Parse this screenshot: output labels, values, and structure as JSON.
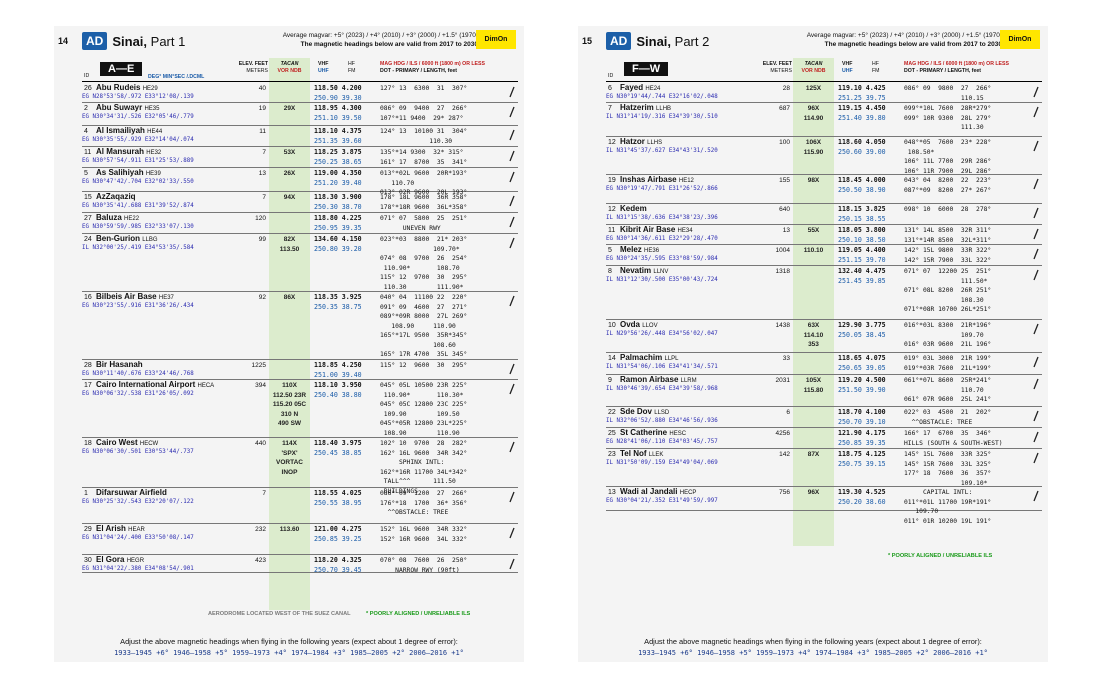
{
  "p1": {
    "page": "14",
    "badge": "AD",
    "title": "Sinai,",
    "part": "Part 1",
    "magvar_line1": "Average magvar: +5° (2023) / +4° (2010) / +3° (2000) / +1.5° (1970)",
    "magvar_line2": "The magnetic headings below are valid from 2017 to 2030",
    "dimon": "DimOn",
    "letters": "A—E",
    "rows": [
      {
        "idx": "26",
        "name": "Abu Rudeis",
        "icao": "HE29",
        "coord": "EG N28°53'58/.972 E33°12'08/.139",
        "elev": "40",
        "tac": "",
        "vhf": "118.50 4.200",
        "uhf": "250.90 39.30",
        "mag": "127° 13  6300  31  307°"
      },
      {
        "idx": "2",
        "name": "Abu Suwayr",
        "icao": "HE35",
        "coord": "EG N30°34'31/.526 E32°05'46/.779",
        "elev": "19",
        "tac": "29X",
        "vhf": "118.95 4.300",
        "uhf": "251.10 39.50",
        "mag": "086° 09  9400  27  266°\n107°*11 9400  29* 287°"
      },
      {
        "idx": "4",
        "name": "Al Ismailiyah",
        "icao": "HE44",
        "coord": "EG N30°35'55/.929 E32°14'04/.074",
        "elev": "11",
        "tac": "",
        "vhf": "118.10 4.375",
        "uhf": "251.35 39.60",
        "mag": "124° 13  10100 31  304°\n             110.30"
      },
      {
        "idx": "11",
        "name": "Al Mansurah",
        "icao": "HE32",
        "coord": "EG N30°57'54/.911 E31°25'53/.889",
        "elev": "7",
        "tac": "53X",
        "vhf": "118.25 3.875",
        "uhf": "250.25 38.65",
        "mag": "135°*14 9300  32* 315°\n161° 17  8700  35  341°"
      },
      {
        "idx": "5",
        "name": "As Salihiyah",
        "icao": "HE39",
        "coord": "EG N30°47'42/.704 E32°02'33/.550",
        "elev": "13",
        "tac": "26X",
        "vhf": "119.00 4.350",
        "uhf": "251.20 39.40",
        "mag": "013°*02L 9600  20R*193°\n   110.70\n013° 02R 9600  20L 193°"
      },
      {
        "idx": "15",
        "name": "AzZaqaziq",
        "icao": "",
        "coord": "EG N30°35'41/.688 E31°39'52/.874",
        "elev": "7",
        "tac": "94X",
        "vhf": "118.30 3.900",
        "uhf": "250.30 38.70",
        "mag": "178° 18L 9600  36R 358°\n178°*18R 9600  36L*358°"
      },
      {
        "idx": "27",
        "name": "Baluza",
        "icao": "HE22",
        "coord": "EG N30°59'59/.985 E32°33'07/.130",
        "elev": "120",
        "tac": "",
        "vhf": "118.80 4.225",
        "uhf": "250.95 39.35",
        "mag": "071° 07  5800  25  251°\n      UNEVEN RWY"
      },
      {
        "idx": "24",
        "name": "Ben-Gurion",
        "icao": "LLBG",
        "coord": "IL N32°00'25/.419 E34°53'35/.584",
        "elev": "99",
        "tac": "82X\n113.50",
        "vhf": "134.60 4.150",
        "uhf": "250.80 39.20",
        "mag": "023°*03  8800  21* 203°\n              109.70*\n074° 08  9700  26  254°\n 110.90*       108.70\n115° 12  9700  30  295°\n 110.30        111.90*"
      },
      {
        "idx": "16",
        "name": "Bilbeis Air Base",
        "icao": "HE37",
        "coord": "EG N30°23'55/.916 E31°36'26/.434",
        "elev": "92",
        "tac": "86X",
        "vhf": "118.35 3.925",
        "uhf": "250.35 38.75",
        "mag": "040° 04  11100 22  220°\n091° 09  4600  27  271°\n089°*09R 8000  27L 269°\n   108.90     110.90\n165°*17L 9500  35R*345°\n              108.60\n165° 17R 4700  35L 345°"
      },
      {
        "idx": "28",
        "name": "Bir Hasanah",
        "icao": "",
        "coord": "EG N30°11'40/.676 E33°24'46/.768",
        "elev": "1225",
        "tac": "",
        "vhf": "118.85 4.250",
        "uhf": "251.00 39.40",
        "mag": "115° 12  9600  30  295°"
      },
      {
        "idx": "17",
        "name": "Cairo International Airport",
        "icao": "HECA",
        "coord": "EG N30°06'32/.538 E31°26'05/.092",
        "elev": "394",
        "tac": "110X\n112.50 23R\n115.20 05C\n310 N\n490 SW",
        "vhf": "118.10 3.950",
        "uhf": "250.40 38.80",
        "mag": "045° 05L 10500 23R 225°\n 110.90*       110.30*\n045° 05C 12800 23C 225°\n 109.90        109.50\n045°*05R 12800 23L*225°\n 108.90        110.90"
      },
      {
        "idx": "18",
        "name": "Cairo West",
        "icao": "HECW",
        "coord": "EG N30°06'30/.501 E30°53'44/.737",
        "elev": "440",
        "tac": "114X\n'SPX'\nVORTAC\nINOP",
        "vhf": "118.40 3.975",
        "uhf": "250.45 38.85",
        "mag": "102° 10  9700  28  282°\n162° 16L 9600  34R 342°\n     SPHINX INTL:\n162°*16R 11700 34L*342°\n TALL^^^      111.50\n BUILDINGS"
      },
      {
        "idx": "1",
        "name": "Difarsuwar Airfield",
        "icao": "",
        "coord": "EG N30°25'32/.543 E32°20'07/.122",
        "elev": "7",
        "tac": "",
        "vhf": "118.55 4.025",
        "uhf": "250.55 38.95",
        "mag": "086° 09  1200  27  266°\n176°*18  1700  36* 356°\n  ^^OBSTACLE: TREE"
      },
      {
        "idx": "29",
        "name": "El Arish",
        "icao": "HEAR",
        "coord": "EG N31°04'24/.400 E33°50'08/.147",
        "elev": "232",
        "tac": "113.60",
        "vhf": "121.00 4.275",
        "uhf": "250.85 39.25",
        "mag": "152° 16L 9600  34R 332°\n152° 16R 9600  34L 332°"
      },
      {
        "idx": "30",
        "name": "El Gora",
        "icao": "HEGR",
        "coord": "EG N31°04'22/.380 E34°08'54/.901",
        "elev": "423",
        "tac": "",
        "vhf": "118.20 4.325",
        "uhf": "250.70 39.45",
        "mag": "070° 08  7600  26  250°\n    NARROW RWY (90ft)"
      }
    ],
    "note_suez": "AERODROME LOCATED WEST OF THE SUEZ CANAL",
    "note_poor": "* POORLY ALIGNED / UNRELIABLE ILS",
    "foot": "Adjust the above magnetic headings when flying in the following years (expect about 1 degree of error):",
    "years": "1933–1945 +6°   1946–1958 +5°   1959–1973 +4°   1974–1984 +3°   1985–2005 +2°   2006–2016 +1°"
  },
  "p2": {
    "page": "15",
    "badge": "AD",
    "title": "Sinai,",
    "part": "Part 2",
    "magvar_line1": "Average magvar: +5° (2023) / +4° (2010) / +3° (2000) / +1.5° (1970)",
    "magvar_line2": "The magnetic headings below are valid from 2017 to 2030",
    "dimon": "DimOn",
    "letters": "F—W",
    "rows": [
      {
        "idx": "6",
        "name": "Fayed",
        "icao": "HE24",
        "coord": "EG N30°19'44/.744 E32°16'02/.048",
        "elev": "28",
        "tac": "125X",
        "vhf": "119.10 4.425",
        "uhf": "251.25 39.75",
        "mag": "086° 09  9800  27  266°\n               110.15"
      },
      {
        "idx": "7",
        "name": "Hatzerim",
        "icao": "LLHB",
        "coord": "IL N31°14'19/.316 E34°39'30/.510",
        "elev": "687",
        "tac": "96X\n114.90",
        "vhf": "119.15 4.450",
        "uhf": "251.40 39.80",
        "mag": "099°*10L 7600  28R*279°\n099° 10R 9300  28L 279°\n               111.30"
      },
      {
        "idx": "12",
        "name": "Hatzor",
        "icao": "LLHS",
        "coord": "IL N31°45'37/.627 E34°43'31/.520",
        "elev": "100",
        "tac": "106X\n115.90",
        "vhf": "118.60 4.050",
        "uhf": "250.60 39.00",
        "mag": "048°*05  7600  23* 228°\n 108.50*\n106° 11L 7700  29R 286°\n106° 11R 7900  29L 286°"
      },
      {
        "idx": "19",
        "name": "Inshas Airbase",
        "icao": "HE12",
        "coord": "EG N30°19'47/.791 E31°26'52/.866",
        "elev": "155",
        "tac": "98X",
        "vhf": "118.45 4.000",
        "uhf": "250.50 38.90",
        "mag": "043° 04  8200  22  223°\n087°*09  8200  27* 267°"
      },
      {
        "idx": "12",
        "name": "Kedem",
        "icao": "",
        "coord": "IL N31°15'38/.636 E34°38'23/.396",
        "elev": "640",
        "tac": "",
        "vhf": "118.15 3.825",
        "uhf": "250.15 38.55",
        "mag": "098° 10  6000  28  278°"
      },
      {
        "idx": "11",
        "name": "Kibrit Air Base",
        "icao": "HE34",
        "coord": "EG N30°14'36/.611 E32°29'28/.470",
        "elev": "13",
        "tac": "55X",
        "vhf": "118.05 3.800",
        "uhf": "250.10 38.50",
        "mag": "131° 14L 8500  32R 311°\n131°*14R 8500  32L*311°"
      },
      {
        "idx": "5",
        "name": "Melez",
        "icao": "HE36",
        "coord": "EG N30°24'35/.595 E33°08'59/.984",
        "elev": "1004",
        "tac": "110.10",
        "vhf": "119.05 4.400",
        "uhf": "251.15 39.70",
        "mag": "142° 15L 9800  33R 322°\n142° 15R 7900  33L 322°"
      },
      {
        "idx": "8",
        "name": "Nevatim",
        "icao": "LLNV",
        "coord": "IL N31°12'30/.500 E35°00'43/.724",
        "elev": "1318",
        "tac": "",
        "vhf": "132.40 4.475",
        "uhf": "251.45 39.85",
        "mag": "071° 07  12200 25  251°\n               111.50*\n071° 08L 8200  26R 251°\n               108.30\n071°*08R 10700 26L*251°"
      },
      {
        "idx": "10",
        "name": "Ovda",
        "icao": "LLOV",
        "coord": "IL N29°56'26/.448 E34°56'02/.047",
        "elev": "1438",
        "tac": "63X\n114.10\n353",
        "vhf": "129.90 3.775",
        "uhf": "250.05 38.45",
        "mag": "016°*03L 8300  21R*196°\n               109.70\n016° 03R 9600  21L 196°"
      },
      {
        "idx": "14",
        "name": "Palmachim",
        "icao": "LLPL",
        "coord": "IL N31°54'06/.106 E34°41'34/.571",
        "elev": "33",
        "tac": "",
        "vhf": "118.65 4.075",
        "uhf": "250.65 39.05",
        "mag": "019° 03L 3000  21R 199°\n019°*03R 7600  21L*199°"
      },
      {
        "idx": "9",
        "name": "Ramon Airbase",
        "icao": "LLRM",
        "coord": "IL N30°46'39/.654 E34°39'58/.968",
        "elev": "2031",
        "tac": "105X\n115.80",
        "vhf": "119.20 4.500",
        "uhf": "251.50 39.90",
        "mag": "061°*07L 8600  25R*241°\n               110.70\n061° 07R 9600  25L 241°"
      },
      {
        "idx": "22",
        "name": "Sde Dov",
        "icao": "LLSD",
        "coord": "IL N32°06'52/.880 E34°46'56/.936",
        "elev": "6",
        "tac": "",
        "vhf": "118.70 4.100",
        "uhf": "250.70 39.10",
        "mag": "022° 03  4500  21  202°\n  ^^OBSTACLE: TREE"
      },
      {
        "idx": "25",
        "name": "St Catherine",
        "icao": "HESC",
        "coord": "EG N28°41'06/.110 E34°03'45/.757",
        "elev": "4256",
        "tac": "",
        "vhf": "121.90 4.175",
        "uhf": "250.85 39.35",
        "mag": "166° 17  6700  35  346°\nHILLS (SOUTH & SOUTH-WEST)"
      },
      {
        "idx": "23",
        "name": "Tel Nof",
        "icao": "LLEK",
        "coord": "IL N31°50'09/.159 E34°49'04/.069",
        "elev": "142",
        "tac": "87X",
        "vhf": "118.75 4.125",
        "uhf": "250.75 39.15",
        "mag": "145° 15L 7600  33R 325°\n145° 15R 7600  33L 325°\n177° 18  7600  36  357°\n               109.10*"
      },
      {
        "idx": "13",
        "name": "Wadi al Jandali",
        "icao": "HECP",
        "coord": "EG N30°04'21/.352 E31°49'59/.997",
        "elev": "756",
        "tac": "96X",
        "vhf": "119.30 4.525",
        "uhf": "250.20 38.60",
        "mag": "     CAPITAL INTL:\n011°*01L 11700 19R*191°\n   109.70\n011° 01R 10200 19L 191°"
      }
    ],
    "note_poor": "* POORLY ALIGNED / UNRELIABLE ILS",
    "foot": "Adjust the above magnetic headings when flying in the following years (expect about 1 degree of error):",
    "years": "1933–1945 +6°   1946–1958 +5°   1959–1973 +4°   1974–1984 +3°   1985–2005 +2°   2006–2016 +1°"
  },
  "colh": {
    "elev": "ELEV. FEET",
    "meters": "METERS",
    "tacan": "TACAN",
    "vor": "VOR NDB",
    "vhf": "VHF",
    "uhf": "UHF",
    "hf": "HF",
    "fm": "FM",
    "mag": "MAG HDG / ILS / 6000 ft (1800 m) OR LESS",
    "dot": "DOT - PRIMARY / LENGTH, feet",
    "id": "ID",
    "deg": "DEG° MIN°SEC /.DCML"
  }
}
